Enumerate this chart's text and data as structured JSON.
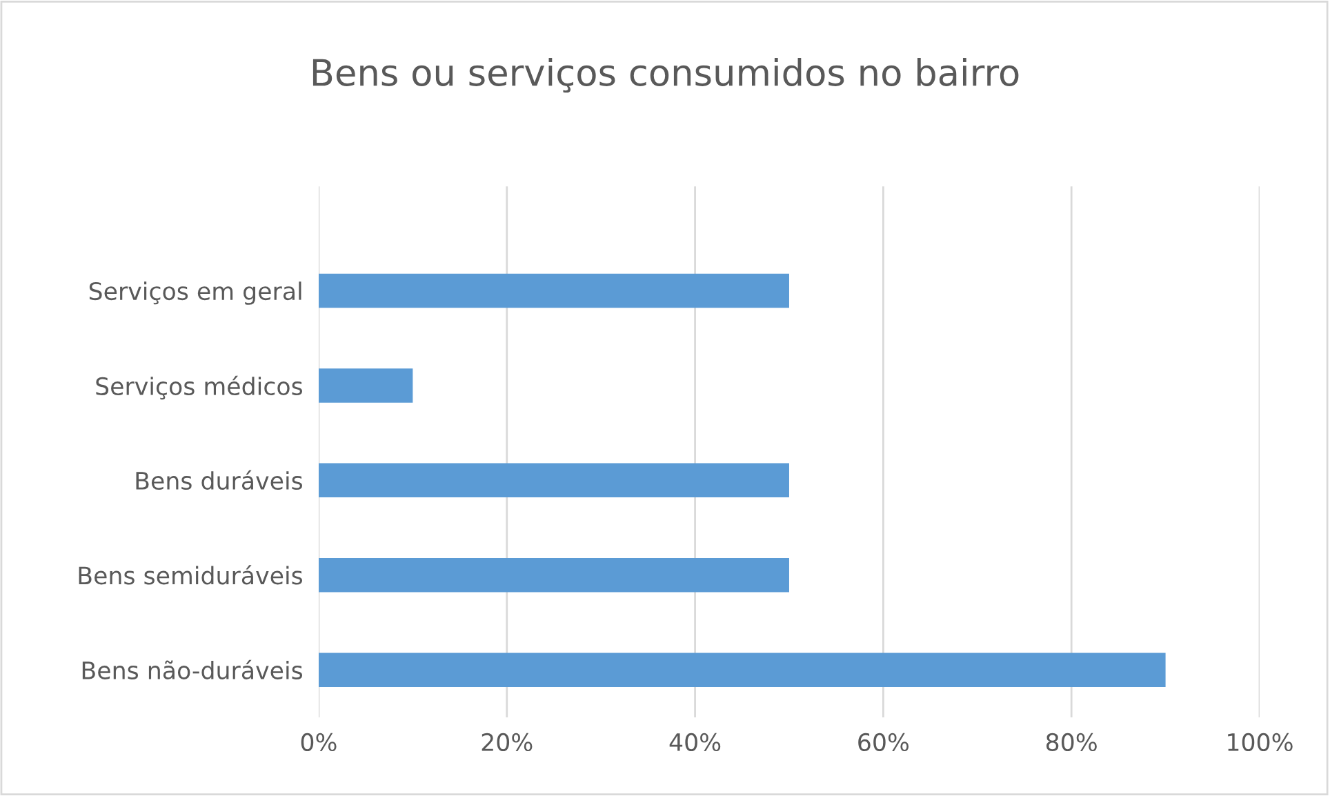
{
  "chart_data": {
    "type": "bar",
    "orientation": "horizontal",
    "title": "Bens ou serviços consumidos no bairro",
    "categories": [
      "Serviços em geral",
      "Serviços médicos",
      "Bens duráveis",
      "Bens semiduráveis",
      "Bens não-duráveis"
    ],
    "values": [
      50,
      10,
      50,
      50,
      90
    ],
    "color": "#5b9bd5",
    "xlim": [
      0,
      100
    ],
    "xticks": [
      {
        "value": 0,
        "label": "0%"
      },
      {
        "value": 20,
        "label": "20%"
      },
      {
        "value": 40,
        "label": "40%"
      },
      {
        "value": 60,
        "label": "60%"
      },
      {
        "value": 80,
        "label": "80%"
      },
      {
        "value": 100,
        "label": "100%"
      }
    ],
    "grid": "x",
    "legend": false
  }
}
